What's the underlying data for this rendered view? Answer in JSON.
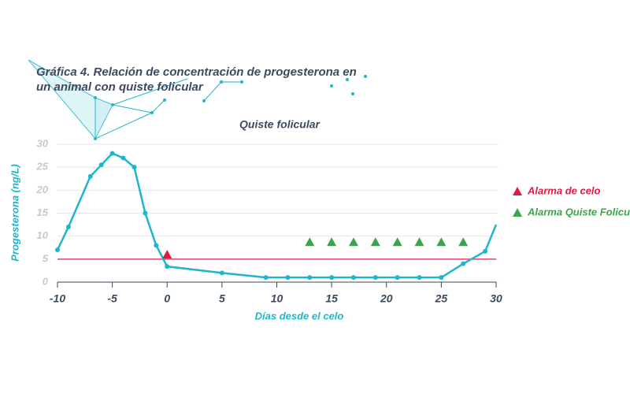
{
  "chart_data": {
    "type": "line",
    "heading": [
      "Gráfica 4. Relación de concentración de progesterona en",
      "un animal con quiste folicular"
    ],
    "title": "Quiste folicular",
    "xlabel": "Días desde el celo",
    "ylabel": "Progesterona (ng/L)",
    "x": [
      -10,
      -9,
      -7,
      -6,
      -5,
      -4,
      -3,
      -2,
      -1,
      0,
      5,
      9,
      11,
      13,
      15,
      17,
      19,
      21,
      23,
      25,
      27,
      29,
      30
    ],
    "series": [
      {
        "color": "#1fb5cc",
        "values": [
          7,
          12,
          23,
          25.5,
          28,
          27,
          25,
          15,
          8,
          3.4,
          2,
          1,
          1,
          1,
          1,
          1,
          1,
          1,
          1,
          1,
          4,
          6.7,
          12.5
        ]
      }
    ],
    "markers": [
      {
        "name": "Alarma de celo",
        "color": "#e8173f",
        "x": [
          0
        ],
        "values": [
          6
        ]
      },
      {
        "name": "Alarma Quiste Folicular",
        "color": "#3aa54a",
        "x": [
          13,
          15,
          17,
          19,
          21,
          23,
          25,
          27
        ],
        "values": [
          8.7,
          8.7,
          8.7,
          8.7,
          8.7,
          8.7,
          8.7,
          8.7
        ]
      }
    ],
    "threshold": {
      "value": 5,
      "color": "#e8406a"
    },
    "xlim": [
      -10,
      30
    ],
    "ylim": [
      0,
      30
    ],
    "xticks": [
      -10,
      -5,
      0,
      5,
      10,
      15,
      20,
      25,
      30
    ],
    "yticks": [
      0,
      5,
      10,
      15,
      20,
      25,
      30
    ],
    "grid": true
  }
}
